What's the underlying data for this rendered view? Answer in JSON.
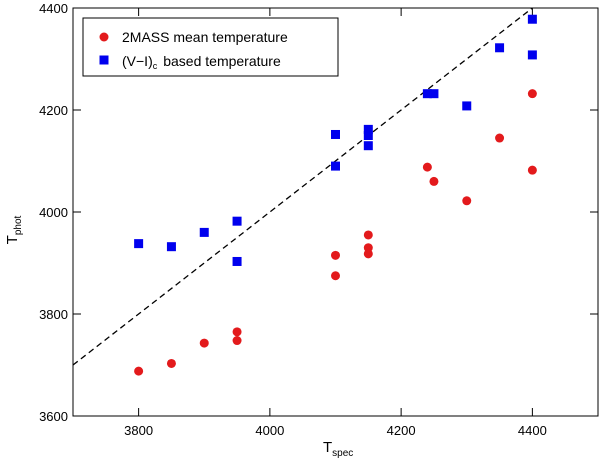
{
  "chart_data": {
    "type": "scatter",
    "xlabel": {
      "main": "T",
      "sub": "spec"
    },
    "ylabel": {
      "main": "T",
      "sub": "phot"
    },
    "xlim": [
      3700,
      4500
    ],
    "ylim": [
      3600,
      4400
    ],
    "x_ticks": [
      3800,
      4000,
      4200,
      4400
    ],
    "y_ticks": [
      3600,
      3800,
      4000,
      4200,
      4400
    ],
    "grid": false,
    "legend_position": "top-left",
    "reference_line": {
      "style": "dashed",
      "from": [
        3700,
        3700
      ],
      "to": [
        4400,
        4400
      ],
      "label": ""
    },
    "series": [
      {
        "name": "2MASS mean temperature",
        "marker": "circle",
        "color": "#e31a1c",
        "points": [
          [
            3800,
            3688
          ],
          [
            3850,
            3703
          ],
          [
            3900,
            3743
          ],
          [
            3950,
            3765
          ],
          [
            3950,
            3748
          ],
          [
            4100,
            3915
          ],
          [
            4100,
            3875
          ],
          [
            4150,
            3955
          ],
          [
            4150,
            3930
          ],
          [
            4150,
            3918
          ],
          [
            4240,
            4088
          ],
          [
            4250,
            4060
          ],
          [
            4300,
            4022
          ],
          [
            4350,
            4145
          ],
          [
            4400,
            4232
          ],
          [
            4400,
            4082
          ]
        ]
      },
      {
        "name": "(V−I)",
        "name_sub": "c",
        "name_suffix": "based temperature",
        "marker": "square",
        "color": "#0000ee",
        "points": [
          [
            3800,
            3938
          ],
          [
            3850,
            3932
          ],
          [
            3900,
            3960
          ],
          [
            3950,
            3982
          ],
          [
            3950,
            3903
          ],
          [
            4100,
            4152
          ],
          [
            4100,
            4090
          ],
          [
            4150,
            4162
          ],
          [
            4150,
            4150
          ],
          [
            4150,
            4130
          ],
          [
            4240,
            4232
          ],
          [
            4250,
            4232
          ],
          [
            4300,
            4208
          ],
          [
            4350,
            4322
          ],
          [
            4400,
            4308
          ],
          [
            4400,
            4378
          ]
        ]
      }
    ]
  }
}
